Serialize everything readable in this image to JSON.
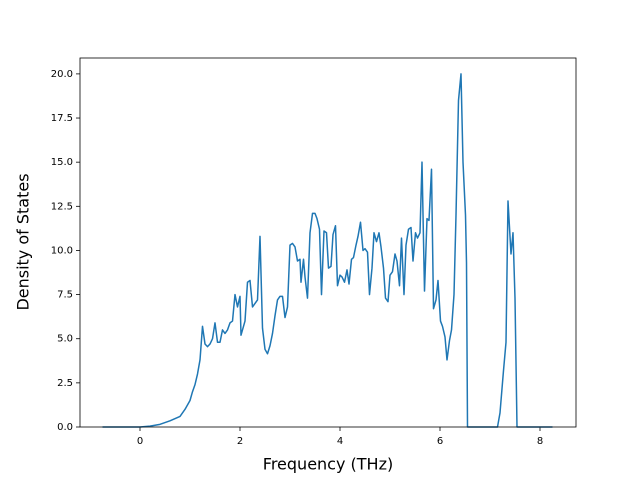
{
  "chart_data": {
    "type": "line",
    "x_label": "Frequency (THz)",
    "y_label": "Density of States",
    "xlim": [
      -1.2,
      8.72
    ],
    "ylim": [
      0,
      20.9
    ],
    "xticks": [
      0,
      2,
      4,
      6,
      8
    ],
    "yticks": [
      {
        "value": 0,
        "label": "0.0"
      },
      2.5,
      {
        "value": 5,
        "label": "5.0"
      },
      7.5,
      {
        "value": 10,
        "label": "10.0"
      },
      12.5,
      {
        "value": 15,
        "label": "15.0"
      },
      17.5,
      {
        "value": 20,
        "label": "20.0"
      }
    ],
    "series": [
      {
        "color": "#1f77b4",
        "x": [
          -0.75,
          0,
          0.2,
          0.4,
          0.6,
          0.8,
          0.9,
          1.0,
          1.05,
          1.1,
          1.15,
          1.2,
          1.25,
          1.3,
          1.35,
          1.4,
          1.45,
          1.5,
          1.55,
          1.6,
          1.65,
          1.7,
          1.75,
          1.8,
          1.85,
          1.9,
          1.95,
          2.0,
          2.02,
          2.1,
          2.15,
          2.2,
          2.25,
          2.3,
          2.35,
          2.4,
          2.45,
          2.5,
          2.55,
          2.6,
          2.65,
          2.7,
          2.75,
          2.8,
          2.85,
          2.9,
          2.95,
          3.0,
          3.05,
          3.1,
          3.15,
          3.2,
          3.22,
          3.27,
          3.3,
          3.35,
          3.4,
          3.45,
          3.5,
          3.54,
          3.59,
          3.63,
          3.68,
          3.73,
          3.77,
          3.82,
          3.86,
          3.91,
          3.95,
          4.0,
          4.04,
          4.09,
          4.14,
          4.18,
          4.23,
          4.27,
          4.32,
          4.36,
          4.41,
          4.46,
          4.5,
          4.55,
          4.59,
          4.64,
          4.68,
          4.73,
          4.78,
          4.82,
          4.87,
          4.91,
          4.96,
          5.0,
          5.05,
          5.1,
          5.14,
          5.19,
          5.23,
          5.28,
          5.32,
          5.37,
          5.42,
          5.46,
          5.51,
          5.55,
          5.6,
          5.64,
          5.69,
          5.74,
          5.78,
          5.83,
          5.87,
          5.92,
          5.96,
          6.01,
          6.05,
          6.1,
          6.14,
          6.19,
          6.23,
          6.28,
          6.32,
          6.37,
          6.42,
          6.46,
          6.51,
          6.53,
          6.55,
          7.15,
          7.2,
          7.27,
          7.32,
          7.36,
          7.42,
          7.46,
          7.5,
          7.54,
          8.25
        ],
        "values": [
          0,
          0,
          0.05,
          0.15,
          0.35,
          0.6,
          1.0,
          1.5,
          2.0,
          2.4,
          3.0,
          3.8,
          5.7,
          4.7,
          4.55,
          4.7,
          5.0,
          5.9,
          4.8,
          4.8,
          5.5,
          5.3,
          5.5,
          5.9,
          6.0,
          7.5,
          6.8,
          7.4,
          5.2,
          6.0,
          8.2,
          8.3,
          6.8,
          7.0,
          7.2,
          10.8,
          5.6,
          4.4,
          4.15,
          4.6,
          5.3,
          6.3,
          7.2,
          7.4,
          7.4,
          6.2,
          6.8,
          10.3,
          10.4,
          10.2,
          9.4,
          9.5,
          8.2,
          9.5,
          8.5,
          7.3,
          11.0,
          12.1,
          12.1,
          11.8,
          11.2,
          7.5,
          11.1,
          11.0,
          9.0,
          9.1,
          10.9,
          11.4,
          8.0,
          8.6,
          8.5,
          8.2,
          8.9,
          8.1,
          9.5,
          9.6,
          10.3,
          10.8,
          11.6,
          10.0,
          10.1,
          9.9,
          7.5,
          9.0,
          11.0,
          10.5,
          11.0,
          10.2,
          9.0,
          7.3,
          7.1,
          8.6,
          8.8,
          9.8,
          9.4,
          8.0,
          10.7,
          7.5,
          10.3,
          11.2,
          11.3,
          9.4,
          11.0,
          10.7,
          11.0,
          15.0,
          7.7,
          11.8,
          11.7,
          14.6,
          6.7,
          7.2,
          8.3,
          6.0,
          5.7,
          5.1,
          3.8,
          4.9,
          5.5,
          7.5,
          12.0,
          18.5,
          20.0,
          15.0,
          12.0,
          9.3,
          0,
          0,
          0.8,
          3.2,
          4.8,
          12.8,
          9.8,
          11.0,
          7.3,
          0,
          0
        ]
      }
    ]
  }
}
